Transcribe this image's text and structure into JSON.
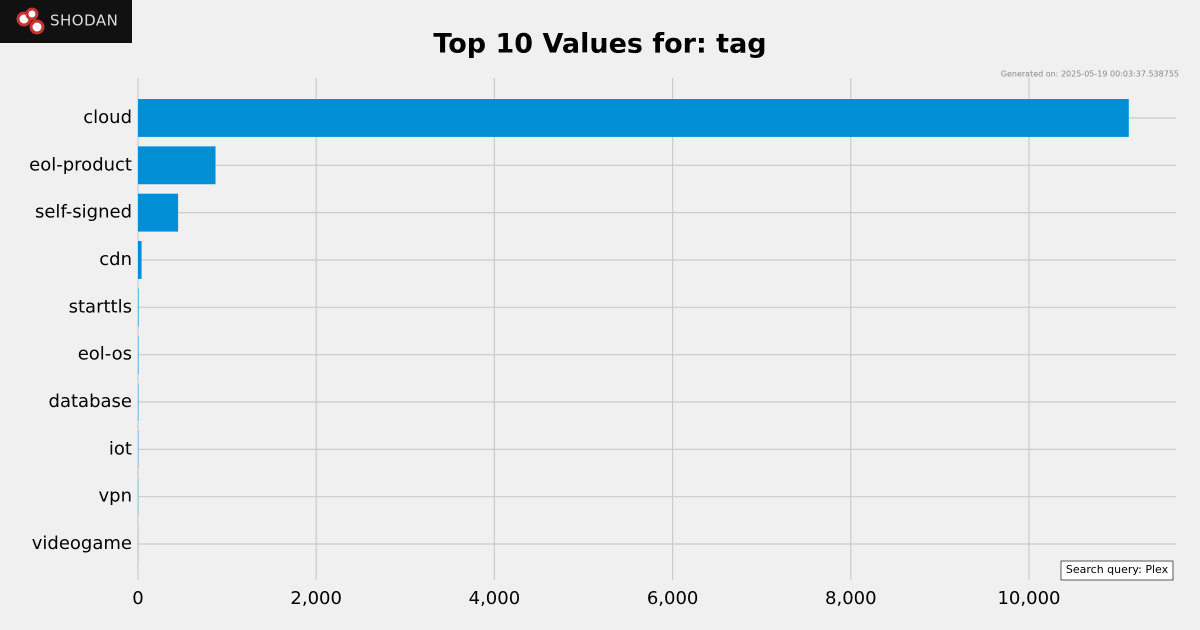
{
  "logo": "SHODAN",
  "chart_data": {
    "type": "barh",
    "title": "Top 10 Values for: tag",
    "annotations": [
      "Generated on: 2025-05-19 00:03:37.538755",
      "Search query: Plex"
    ],
    "categories": [
      "cloud",
      "eol-product",
      "self-signed",
      "cdn",
      "starttls",
      "eol-os",
      "database",
      "iot",
      "vpn",
      "videogame"
    ],
    "values": [
      11120,
      870,
      450,
      40,
      6,
      5,
      4,
      3,
      2,
      1
    ],
    "color": "#008fd5",
    "xlim": [
      0,
      11650
    ],
    "xticks": [
      0,
      {
        "value": 2000,
        "label": "2,000"
      },
      {
        "value": 4000,
        "label": "4,000"
      },
      {
        "value": 6000,
        "label": "6,000"
      },
      {
        "value": 8000,
        "label": "8,000"
      },
      {
        "value": 10000,
        "label": "10,000"
      }
    ],
    "grid": true
  }
}
